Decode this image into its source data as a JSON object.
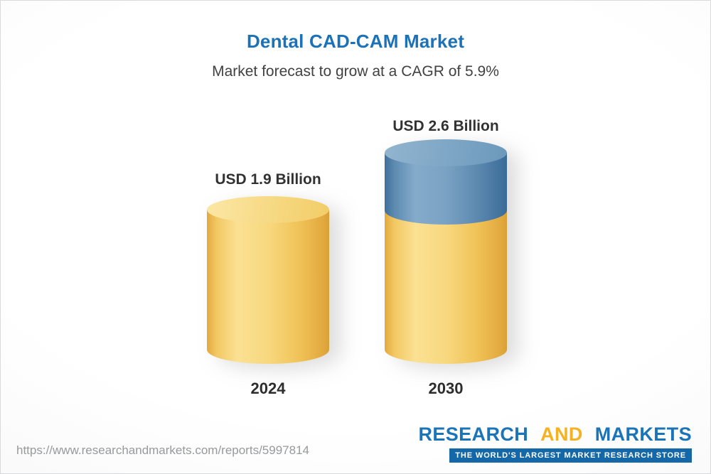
{
  "chart_data": {
    "type": "bar",
    "bar_style": "3d-cylinder",
    "title": "Dental CAD-CAM Market",
    "subtitle": "Market forecast to grow at a CAGR of 5.9%",
    "cagr_percent": 5.9,
    "unit": "USD Billion",
    "categories": [
      "2024",
      "2030"
    ],
    "values": [
      1.9,
      2.6
    ],
    "value_labels": [
      "USD 1.9 Billion",
      "USD 2.6 Billion"
    ],
    "ylim": [
      0,
      3
    ],
    "grid": false,
    "legend": false,
    "segments": [
      [
        {
          "value": 1.9,
          "color": "#F6CE6B"
        }
      ],
      [
        {
          "value": 1.9,
          "color": "#F6CE6B"
        },
        {
          "value": 0.7,
          "color": "#5E8DB4"
        }
      ]
    ],
    "colors": {
      "title_blue": "#1B72B8",
      "bar_yellow": "#F6CE6B",
      "bar_blue": "#5E8DB4"
    }
  },
  "footer": {
    "url": "https://www.researchandmarkets.com/reports/5997814",
    "brand": {
      "research": "RESEARCH",
      "and": "AND",
      "markets": "MARKETS",
      "tagline": "THE WORLD'S LARGEST MARKET RESEARCH STORE"
    }
  }
}
